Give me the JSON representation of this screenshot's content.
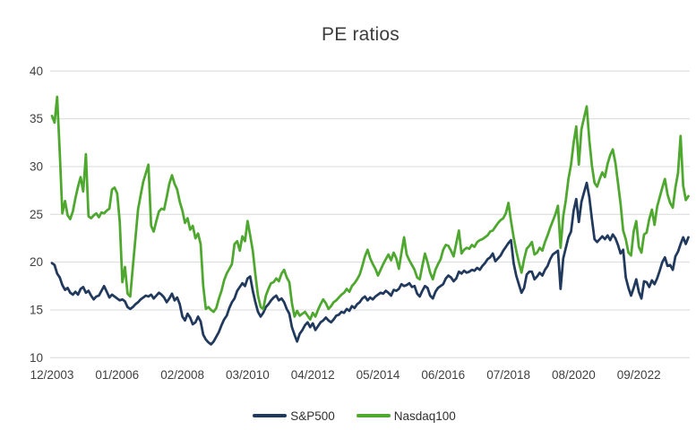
{
  "title": "PE ratios",
  "colors": {
    "sp500": "#20395c",
    "nasdaq100": "#4ea72e",
    "gridline": "#d9d9d9",
    "axis_text": "#404040",
    "title_text": "#3d3d3d",
    "background": "#ffffff"
  },
  "legend": [
    {
      "label": "S&P500",
      "color": "#20395c"
    },
    {
      "label": "Nasdaq100",
      "color": "#4ea72e"
    }
  ],
  "chart_data": {
    "type": "line",
    "title": "PE ratios",
    "xlabel": "",
    "ylabel": "",
    "frequency": "monthly",
    "x_start": "12/2003",
    "x_end": "04/2024",
    "ylim": [
      10,
      40
    ],
    "y_ticks": [
      40,
      35,
      30,
      25,
      20,
      15,
      10
    ],
    "grid": "horizontal-only",
    "legend_position": "bottom-center",
    "x_tick_labels": [
      "12/2003",
      "01/2006",
      "02/2008",
      "03/2010",
      "04/2012",
      "05/2014",
      "06/2016",
      "07/2018",
      "08/2020",
      "09/2022"
    ],
    "x_tick_month_indices": [
      0,
      25,
      50,
      75,
      100,
      125,
      150,
      175,
      200,
      225
    ],
    "series": [
      {
        "name": "S&P500",
        "color": "#20395c",
        "values": [
          19.9,
          19.7,
          18.8,
          18.4,
          17.6,
          17.1,
          17.3,
          16.8,
          16.6,
          16.9,
          16.6,
          17.2,
          17.4,
          16.8,
          17.0,
          16.5,
          16.1,
          16.4,
          16.5,
          17.0,
          17.5,
          16.9,
          16.3,
          16.6,
          16.4,
          16.2,
          16.0,
          16.1,
          15.9,
          15.3,
          15.1,
          15.3,
          15.6,
          15.8,
          16.1,
          16.3,
          16.5,
          16.4,
          16.6,
          16.2,
          16.5,
          16.8,
          16.6,
          16.3,
          15.8,
          16.2,
          16.7,
          16.0,
          16.3,
          15.6,
          14.3,
          13.9,
          14.6,
          14.2,
          13.5,
          13.7,
          14.3,
          13.8,
          12.4,
          11.9,
          11.6,
          11.4,
          11.7,
          12.2,
          12.7,
          13.4,
          14.0,
          14.4,
          15.2,
          15.8,
          16.2,
          17.0,
          17.4,
          17.8,
          17.5,
          18.3,
          18.5,
          17.0,
          15.8,
          14.8,
          14.3,
          14.7,
          15.3,
          15.6,
          16.0,
          16.3,
          16.5,
          16.0,
          16.2,
          15.8,
          15.1,
          14.6,
          13.2,
          12.4,
          11.7,
          12.5,
          12.9,
          13.4,
          13.7,
          13.2,
          13.6,
          12.9,
          13.3,
          13.7,
          13.9,
          14.2,
          13.9,
          13.7,
          14.0,
          14.4,
          14.5,
          14.8,
          14.7,
          15.1,
          14.9,
          15.4,
          15.2,
          15.6,
          15.8,
          16.2,
          16.4,
          16.0,
          16.3,
          16.1,
          16.4,
          16.6,
          16.8,
          16.7,
          17.0,
          16.8,
          16.5,
          17.1,
          17.0,
          17.2,
          17.7,
          17.5,
          17.6,
          17.8,
          17.4,
          17.5,
          16.7,
          16.4,
          17.0,
          17.5,
          17.3,
          16.5,
          16.2,
          16.9,
          17.3,
          17.5,
          17.7,
          18.3,
          18.6,
          18.4,
          18.0,
          18.3,
          19.0,
          18.8,
          19.1,
          18.9,
          19.0,
          19.2,
          19.1,
          19.4,
          19.2,
          19.6,
          19.9,
          20.3,
          20.5,
          20.9,
          20.1,
          20.4,
          20.7,
          21.2,
          21.6,
          22.0,
          22.3,
          19.9,
          18.6,
          17.7,
          16.8,
          17.3,
          18.7,
          19.0,
          19.0,
          18.2,
          18.5,
          18.9,
          18.6,
          19.2,
          19.6,
          20.3,
          20.8,
          21.0,
          21.2,
          17.2,
          20.4,
          21.5,
          22.6,
          23.2,
          25.4,
          26.6,
          24.2,
          26.3,
          27.3,
          28.3,
          26.8,
          24.5,
          22.4,
          22.1,
          22.4,
          22.7,
          22.4,
          22.8,
          22.3,
          22.9,
          22.5,
          21.8,
          20.9,
          21.3,
          18.4,
          17.3,
          16.5,
          17.3,
          18.2,
          16.9,
          16.2,
          18.0,
          17.9,
          17.4,
          18.1,
          17.7,
          18.3,
          19.1,
          20.0,
          20.5,
          19.6,
          19.7,
          19.2,
          20.6,
          21.1,
          21.9,
          22.6,
          21.9,
          22.6
        ]
      },
      {
        "name": "Nasdaq100",
        "color": "#4ea72e",
        "values": [
          35.3,
          34.6,
          37.3,
          31.5,
          25.1,
          26.4,
          24.9,
          24.5,
          25.3,
          26.7,
          27.9,
          28.9,
          27.4,
          31.3,
          24.8,
          24.6,
          24.9,
          25.1,
          24.7,
          25.2,
          25.1,
          25.4,
          25.6,
          27.6,
          27.8,
          27.2,
          24.2,
          17.9,
          19.5,
          16.7,
          16.4,
          19.5,
          22.5,
          25.5,
          27.0,
          28.4,
          29.3,
          30.2,
          23.8,
          23.2,
          24.3,
          25.3,
          25.6,
          25.5,
          26.8,
          28.2,
          29.1,
          28.2,
          27.6,
          26.3,
          25.4,
          24.1,
          24.6,
          23.4,
          23.8,
          22.5,
          23.0,
          21.9,
          17.5,
          15.1,
          15.3,
          15.0,
          14.8,
          15.2,
          16.2,
          17.0,
          18.1,
          18.8,
          19.3,
          19.8,
          21.9,
          22.2,
          21.2,
          22.7,
          22.2,
          24.3,
          22.8,
          21.2,
          18.7,
          16.5,
          15.3,
          15.1,
          16.5,
          17.2,
          17.8,
          17.9,
          18.3,
          18.0,
          18.8,
          19.2,
          18.4,
          17.9,
          15.7,
          14.3,
          14.9,
          14.4,
          14.6,
          14.8,
          14.4,
          14.0,
          14.7,
          14.3,
          15.0,
          15.6,
          16.1,
          15.7,
          15.1,
          15.4,
          15.8,
          16.0,
          16.3,
          16.6,
          16.8,
          17.2,
          16.9,
          17.5,
          17.8,
          18.2,
          18.7,
          19.6,
          20.6,
          21.3,
          20.4,
          19.8,
          19.3,
          18.6,
          19.2,
          19.8,
          20.3,
          20.8,
          20.2,
          21.0,
          20.4,
          19.3,
          21.0,
          22.6,
          20.8,
          20.2,
          19.7,
          19.2,
          18.4,
          18.2,
          19.6,
          20.9,
          20.0,
          18.9,
          18.2,
          19.2,
          19.8,
          20.3,
          21.3,
          21.8,
          21.7,
          21.2,
          20.6,
          22.0,
          23.3,
          20.9,
          21.3,
          21.5,
          21.4,
          21.8,
          21.6,
          22.1,
          22.3,
          22.4,
          22.6,
          22.8,
          23.2,
          23.3,
          23.7,
          24.1,
          24.4,
          24.6,
          25.1,
          26.2,
          24.3,
          22.6,
          21.2,
          20.0,
          18.9,
          20.3,
          21.4,
          21.7,
          22.1,
          20.8,
          21.0,
          21.5,
          21.2,
          22.1,
          22.8,
          23.6,
          24.3,
          25.0,
          25.9,
          21.5,
          24.8,
          26.5,
          28.7,
          30.2,
          32.5,
          34.2,
          30.2,
          33.9,
          35.1,
          36.3,
          32.8,
          30.1,
          28.3,
          27.9,
          28.7,
          29.4,
          28.9,
          30.3,
          31.2,
          31.8,
          30.4,
          28.3,
          26.1,
          23.3,
          22.4,
          21.0,
          20.7,
          23.2,
          24.3,
          21.6,
          21.0,
          22.9,
          23.1,
          24.5,
          25.5,
          23.9,
          25.8,
          26.8,
          27.8,
          28.7,
          27.1,
          26.2,
          25.7,
          27.8,
          29.3,
          33.2,
          28.0,
          26.5,
          26.9
        ]
      }
    ]
  }
}
